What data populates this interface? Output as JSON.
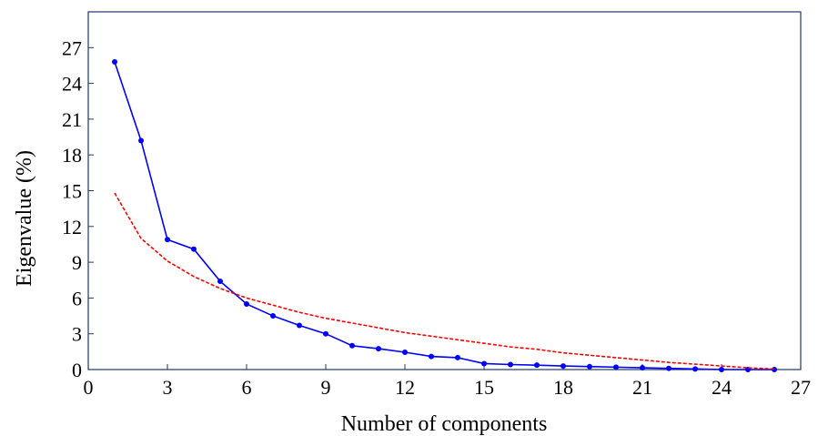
{
  "chart_data": {
    "type": "line",
    "title": "",
    "xlabel": "Number of components",
    "ylabel": "Eigenvalue (%)",
    "xlim": [
      0,
      27
    ],
    "ylim": [
      0,
      30
    ],
    "xticks": [
      0,
      3,
      6,
      9,
      12,
      15,
      18,
      21,
      24,
      27
    ],
    "yticks": [
      0,
      3,
      6,
      9,
      12,
      15,
      18,
      21,
      24,
      27
    ],
    "grid": false,
    "legend": "none",
    "series": [
      {
        "style": "solid-with-markers",
        "color": "#0000ff",
        "x": [
          1,
          2,
          3,
          4,
          5,
          6,
          7,
          8,
          9,
          10,
          11,
          12,
          13,
          14,
          15,
          16,
          17,
          18,
          19,
          20,
          21,
          22,
          23,
          24,
          25,
          26
        ],
        "y": [
          25.8,
          19.2,
          10.9,
          10.1,
          7.4,
          5.5,
          4.5,
          3.7,
          3.0,
          2.0,
          1.75,
          1.45,
          1.1,
          1.0,
          0.5,
          0.42,
          0.37,
          0.3,
          0.25,
          0.2,
          0.15,
          0.1,
          0.05,
          0.0,
          0.0,
          0.0
        ]
      },
      {
        "style": "dashed",
        "color": "#ff0000",
        "x": [
          1,
          2,
          3,
          4,
          5,
          6,
          7,
          8,
          9,
          10,
          11,
          12,
          13,
          14,
          15,
          16,
          17,
          18,
          19,
          20,
          21,
          22,
          23,
          24,
          25,
          26
        ],
        "y": [
          14.8,
          11.0,
          9.1,
          7.8,
          6.8,
          6.0,
          5.4,
          4.8,
          4.3,
          3.9,
          3.5,
          3.1,
          2.8,
          2.5,
          2.2,
          1.9,
          1.7,
          1.4,
          1.2,
          1.0,
          0.8,
          0.6,
          0.45,
          0.3,
          0.15,
          0.05
        ]
      }
    ]
  }
}
